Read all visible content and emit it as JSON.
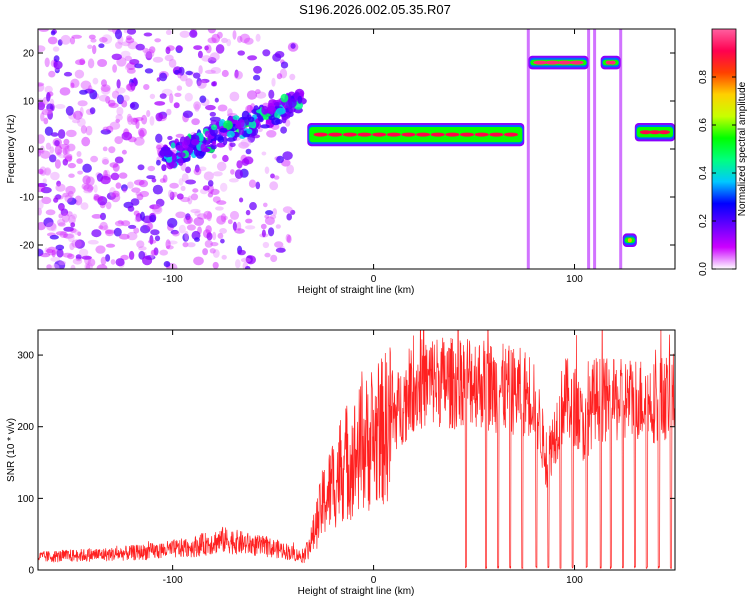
{
  "title": "S196.2026.002.05.35.R07",
  "chart_data": [
    {
      "type": "heatmap",
      "title": "S196.2026.002.05.35.R07",
      "xlabel": "Height of straight line (km)",
      "ylabel": "Frequency (Hz)",
      "xlim": [
        -167,
        150
      ],
      "ylim": [
        -25,
        25
      ],
      "xticks": [
        -100,
        0,
        100
      ],
      "yticks": [
        -20,
        -10,
        0,
        10,
        20
      ],
      "grid": false,
      "colorbar": {
        "label": "Normalized spectral amplitude",
        "range": [
          0,
          1
        ],
        "ticks": [
          0.0,
          0.2,
          0.4,
          0.6,
          0.8
        ],
        "colormap": [
          "#ffffff",
          "#cc00ff",
          "#6600ff",
          "#0000ff",
          "#00c8ff",
          "#00ff80",
          "#00ff00",
          "#c8ff00",
          "#ffd000",
          "#ff4000",
          "#ff0050",
          "#ff60a0"
        ]
      },
      "features": [
        {
          "label": "scattered noise",
          "x": [
            -167,
            -40
          ],
          "y": [
            -25,
            25
          ],
          "amplitude": 0.15
        },
        {
          "label": "rising track",
          "x": [
            -105,
            -35
          ],
          "y": [
            -2,
            10
          ],
          "amplitude": 0.35
        },
        {
          "label": "main track",
          "x": [
            -33,
            75
          ],
          "y": [
            1,
            5
          ],
          "amplitude": 0.9
        },
        {
          "label": "upper track",
          "x": [
            77,
            107
          ],
          "y": [
            17,
            19
          ],
          "amplitude": 0.95
        },
        {
          "label": "upper track",
          "x": [
            113,
            123
          ],
          "y": [
            17,
            19
          ],
          "amplitude": 0.95
        },
        {
          "label": "low spot",
          "x": [
            124,
            131
          ],
          "y": [
            -20,
            -18
          ],
          "amplitude": 0.75
        },
        {
          "label": "right track",
          "x": [
            130,
            150
          ],
          "y": [
            2,
            5
          ],
          "amplitude": 0.9
        }
      ]
    },
    {
      "type": "line",
      "xlabel": "Height of straight line (km)",
      "ylabel": "SNR (10 * v/v)",
      "xlim": [
        -167,
        150
      ],
      "ylim": [
        0,
        335
      ],
      "xticks": [
        -100,
        0,
        100
      ],
      "yticks": [
        0,
        100,
        200,
        300
      ],
      "grid": false,
      "series": [
        {
          "color": "#ff2020",
          "x": [
            -167,
            -150,
            -130,
            -110,
            -90,
            -75,
            -60,
            -45,
            -35,
            -31,
            -25,
            -20,
            -15,
            -10,
            -5,
            0,
            5,
            10,
            15,
            20,
            30,
            40,
            45,
            50,
            60,
            70,
            80,
            83,
            86,
            90,
            95,
            100,
            105,
            110,
            120,
            130,
            140,
            150
          ],
          "values": [
            18,
            20,
            22,
            26,
            32,
            42,
            35,
            28,
            18,
            40,
            95,
            120,
            150,
            155,
            175,
            180,
            195,
            215,
            235,
            255,
            265,
            260,
            270,
            265,
            255,
            250,
            245,
            200,
            150,
            190,
            240,
            230,
            195,
            240,
            235,
            240,
            235,
            245
          ],
          "dropouts_x": [
            46,
            56,
            62,
            68,
            74,
            81,
            87,
            93,
            99,
            106,
            113,
            118,
            124,
            130,
            136,
            142,
            148
          ]
        }
      ]
    }
  ]
}
